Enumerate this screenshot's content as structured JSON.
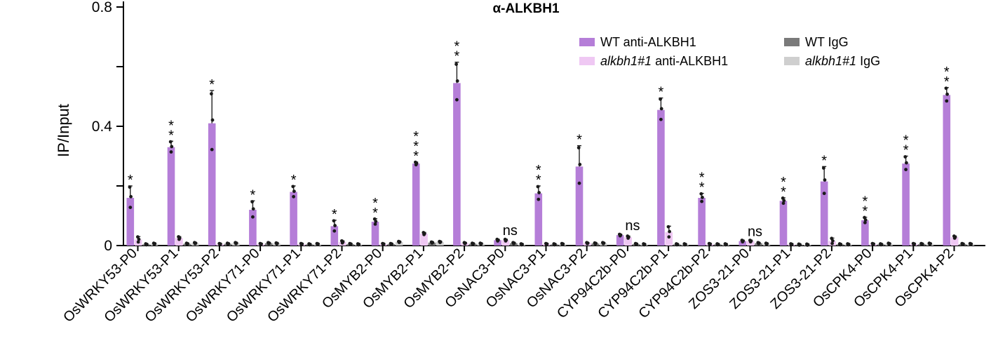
{
  "chart_data": {
    "type": "bar",
    "title": "α-ALKBH1",
    "ylabel": "IP/Input",
    "xlabel": "",
    "ylim": [
      0,
      0.8
    ],
    "yticks": [
      0,
      0.4,
      0.8
    ],
    "yticks_labels": [
      "0",
      "0.4",
      "0.8"
    ],
    "legend": {
      "position": "top-right",
      "entries": [
        {
          "italic": "",
          "text": "WT anti-ALKBH1",
          "color": "#b57ed8"
        },
        {
          "italic": "",
          "text": "WT IgG",
          "color": "#7a7a7a"
        },
        {
          "italic": "alkbh1#1",
          "text": " anti-ALKBH1",
          "color": "#efc8f3"
        },
        {
          "italic": "alkbh1#1",
          "text": " IgG",
          "color": "#cfcfcf"
        }
      ]
    },
    "categories": [
      "OsWRKY53-P0",
      "OsWRKY53-P1",
      "OsWRKY53-P2",
      "OsWRKY71-P0",
      "OsWRKY71-P1",
      "OsWRKY71-P2",
      "OsMYB2-P0",
      "OsMYB2-P1",
      "OsMYB2-P2",
      "OsNAC3-P0",
      "OsNAC3-P1",
      "OsNAC3-P2",
      "CYP94C2b-P0",
      "CYP94C2b-P1",
      "CYP94C2b-P2",
      "ZOS3-21-P0",
      "ZOS3-21-P1",
      "ZOS3-21-P2",
      "OsCPK4-P0",
      "OsCPK4-P1",
      "OsCPK4-P2"
    ],
    "series": [
      {
        "name": "WT anti-ALKBH1",
        "color": "#b57ed8",
        "values": [
          0.16,
          0.33,
          0.41,
          0.12,
          0.18,
          0.065,
          0.08,
          0.275,
          0.545,
          0.018,
          0.175,
          0.265,
          0.035,
          0.455,
          0.16,
          0.015,
          0.15,
          0.215,
          0.085,
          0.275,
          0.505
        ],
        "errors": [
          0.04,
          0.02,
          0.11,
          0.03,
          0.02,
          0.02,
          0.01,
          0.005,
          0.07,
          0.003,
          0.025,
          0.07,
          0.003,
          0.04,
          0.015,
          0.003,
          0.01,
          0.05,
          0.01,
          0.025,
          0.025
        ]
      },
      {
        "name": "alkbh1#1 anti-ALKBH1",
        "color": "#efc8f3",
        "values": [
          0.02,
          0.025,
          0.005,
          0.005,
          0.005,
          0.012,
          0.005,
          0.04,
          0.008,
          0.018,
          0.005,
          0.008,
          0.028,
          0.045,
          0.005,
          0.015,
          0.004,
          0.015,
          0.005,
          0.005,
          0.028
        ],
        "errors": [
          0.01,
          0.005,
          0.002,
          0.002,
          0.002,
          0.004,
          0.002,
          0.004,
          0.002,
          0.003,
          0.002,
          0.002,
          0.004,
          0.02,
          0.002,
          0.003,
          0.002,
          0.01,
          0.002,
          0.002,
          0.004
        ]
      },
      {
        "name": "WT IgG",
        "color": "#7a7a7a",
        "values": [
          0.004,
          0.006,
          0.006,
          0.008,
          0.004,
          0.005,
          0.005,
          0.01,
          0.006,
          0.008,
          0.004,
          0.007,
          0.005,
          0.004,
          0.004,
          0.008,
          0.003,
          0.004,
          0.004,
          0.005,
          0.005
        ],
        "errors": [
          0.002,
          0.002,
          0.002,
          0.002,
          0.002,
          0.002,
          0.002,
          0.002,
          0.002,
          0.002,
          0.002,
          0.002,
          0.002,
          0.002,
          0.002,
          0.002,
          0.002,
          0.002,
          0.002,
          0.002,
          0.002
        ]
      },
      {
        "name": "alkbh1#1 IgG",
        "color": "#cfcfcf",
        "values": [
          0.006,
          0.008,
          0.008,
          0.007,
          0.005,
          0.004,
          0.012,
          0.012,
          0.006,
          0.004,
          0.005,
          0.008,
          0.004,
          0.004,
          0.004,
          0.006,
          0.003,
          0.004,
          0.006,
          0.006,
          0.005
        ],
        "errors": [
          0.002,
          0.002,
          0.002,
          0.002,
          0.002,
          0.002,
          0.002,
          0.002,
          0.002,
          0.002,
          0.002,
          0.002,
          0.002,
          0.002,
          0.002,
          0.002,
          0.002,
          0.002,
          0.002,
          0.002,
          0.002
        ]
      }
    ],
    "significance": [
      "*",
      "**",
      "*",
      "*",
      "*",
      "*",
      "**",
      "***",
      "**",
      "ns",
      "**",
      "*",
      "ns",
      "*",
      "**",
      "ns",
      "**",
      "*",
      "**",
      "**",
      "**"
    ]
  }
}
